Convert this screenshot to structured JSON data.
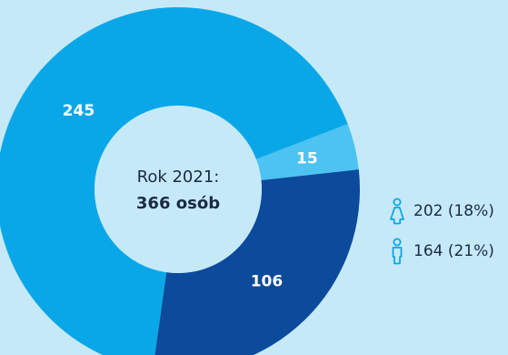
{
  "chart_data": {
    "type": "pie",
    "categories": [
      "245",
      "15",
      "106"
    ],
    "values": [
      245,
      15,
      106
    ],
    "colors": [
      "#0aa7e8",
      "#4dc3f2",
      "#0c4a9c"
    ],
    "center_label": {
      "line1": "Rok 2021:",
      "line2": "366 osób"
    }
  },
  "legend": [
    {
      "icon": "female-icon",
      "text": "202 (18%)",
      "color": "#0aa7e8"
    },
    {
      "icon": "male-icon",
      "text": "164 (21%)",
      "color": "#0aa7e8"
    }
  ]
}
